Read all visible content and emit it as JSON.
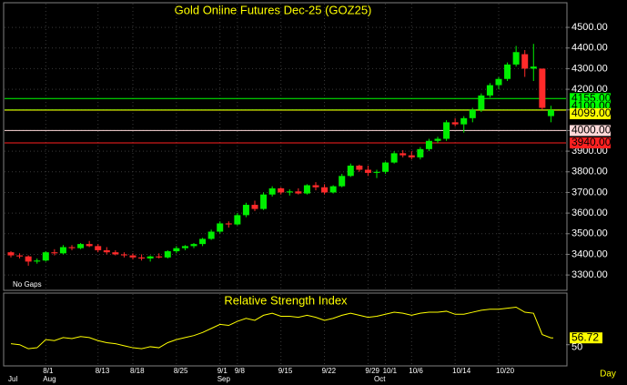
{
  "chart_data": {
    "type": "candlestick",
    "title": "Gold Online Futures Dec-25 (GOZ25)",
    "note": "No Gaps",
    "x_axis_end_label": "Day",
    "categories": [
      null,
      null,
      null,
      null,
      "8/1",
      null,
      null,
      null,
      null,
      null,
      "8/13",
      null,
      null,
      null,
      "8/18",
      null,
      null,
      null,
      null,
      "8/25",
      null,
      null,
      null,
      null,
      "9/1",
      null,
      "9/8",
      null,
      null,
      null,
      null,
      "9/15",
      null,
      null,
      null,
      null,
      "9/22",
      null,
      null,
      null,
      null,
      "9/29",
      null,
      "10/1",
      null,
      null,
      "10/6",
      null,
      null,
      null,
      null,
      "10/14",
      null,
      null,
      null,
      null,
      "10/20",
      null,
      null,
      null,
      null,
      null,
      null
    ],
    "months": [
      "Jul",
      null,
      null,
      null,
      "Aug",
      null,
      null,
      null,
      null,
      null,
      null,
      null,
      null,
      null,
      null,
      null,
      null,
      null,
      null,
      null,
      null,
      null,
      null,
      null,
      "Sep",
      null,
      null,
      null,
      null,
      null,
      null,
      null,
      null,
      null,
      null,
      null,
      null,
      null,
      null,
      null,
      null,
      null,
      "Oct",
      null,
      null,
      null,
      null,
      null,
      null,
      null,
      null,
      null,
      null,
      null,
      null,
      null,
      null,
      null,
      null,
      null,
      null,
      null,
      null,
      null,
      null
    ],
    "open": [
      3410,
      3395,
      3390,
      3365,
      3370,
      3410,
      3405,
      3435,
      3430,
      3450,
      3440,
      3420,
      3410,
      3400,
      3395,
      3385,
      3380,
      3390,
      3385,
      3415,
      3430,
      3440,
      3450,
      3475,
      3510,
      3550,
      3545,
      3590,
      3640,
      3620,
      3690,
      3720,
      3700,
      3705,
      3695,
      3735,
      3725,
      3700,
      3730,
      3780,
      3830,
      3810,
      3795,
      3800,
      3845,
      3890,
      3880,
      3870,
      3910,
      3950,
      3960,
      4040,
      4030,
      4060,
      4100,
      4170,
      4220,
      4250,
      4320,
      4370,
      4300,
      4300,
      4070
    ],
    "high": [
      3415,
      3405,
      3395,
      3380,
      3415,
      3425,
      3445,
      3445,
      3455,
      3465,
      3450,
      3435,
      3420,
      3410,
      3405,
      3400,
      3395,
      3405,
      3420,
      3440,
      3445,
      3455,
      3480,
      3520,
      3560,
      3560,
      3600,
      3650,
      3660,
      3700,
      3730,
      3725,
      3715,
      3720,
      3740,
      3750,
      3740,
      3735,
      3790,
      3840,
      3835,
      3830,
      3810,
      3850,
      3900,
      3905,
      3900,
      3920,
      3960,
      3970,
      4050,
      4060,
      4070,
      4110,
      4180,
      4230,
      4260,
      4330,
      4410,
      4390,
      4420,
      4300,
      4120
    ],
    "low": [
      3385,
      3380,
      3345,
      3355,
      3365,
      3395,
      3400,
      3420,
      3425,
      3435,
      3410,
      3400,
      3395,
      3385,
      3375,
      3370,
      3365,
      3380,
      3380,
      3405,
      3420,
      3430,
      3440,
      3470,
      3500,
      3530,
      3540,
      3580,
      3610,
      3615,
      3680,
      3690,
      3685,
      3690,
      3690,
      3710,
      3690,
      3695,
      3725,
      3775,
      3800,
      3780,
      3770,
      3790,
      3840,
      3870,
      3860,
      3860,
      3900,
      3940,
      3950,
      4020,
      3990,
      4040,
      4090,
      4160,
      4200,
      4240,
      4310,
      4260,
      4240,
      4100,
      4040
    ],
    "close": [
      3395,
      3390,
      3365,
      3370,
      3410,
      3405,
      3435,
      3430,
      3450,
      3440,
      3420,
      3410,
      3400,
      3395,
      3385,
      3380,
      3390,
      3385,
      3415,
      3430,
      3440,
      3450,
      3475,
      3510,
      3550,
      3545,
      3590,
      3640,
      3620,
      3690,
      3720,
      3700,
      3705,
      3695,
      3735,
      3725,
      3700,
      3730,
      3780,
      3830,
      3810,
      3795,
      3800,
      3845,
      3890,
      3880,
      3870,
      3910,
      3950,
      3960,
      4040,
      4030,
      4060,
      4100,
      4170,
      4220,
      4250,
      4320,
      4380,
      4300,
      4310,
      4110,
      4099
    ],
    "up_color": "#00ee00",
    "down_color": "#ff2a2a",
    "ylim": [
      3230,
      4615
    ],
    "yticks": [
      {
        "value": 3300,
        "label": "3300.00"
      },
      {
        "value": 3400,
        "label": "3400.00"
      },
      {
        "value": 3500,
        "label": "3500.00"
      },
      {
        "value": 3600,
        "label": "3600.00"
      },
      {
        "value": 3700,
        "label": "3700.00"
      },
      {
        "value": 3800,
        "label": "3800.00"
      },
      {
        "value": 3900,
        "label": "3900.00"
      },
      {
        "value": 4000,
        "label": "4000.00"
      },
      {
        "value": 4100,
        "label": "4100.00"
      },
      {
        "value": 4200,
        "label": "4200.00"
      },
      {
        "value": 4300,
        "label": "4300.00"
      },
      {
        "value": 4400,
        "label": "4400.00"
      },
      {
        "value": 4500,
        "label": "4500.00"
      }
    ],
    "grid": true,
    "levels": [
      {
        "value": 4155,
        "label": "4155.00",
        "color": "#00ff00"
      },
      {
        "value": 4100,
        "label": "4100.00",
        "color": "#00ff00"
      },
      {
        "value": 4099,
        "label": "4099.00",
        "color": "#ffff00"
      },
      {
        "value": 4000,
        "label": "4000.00",
        "color": "#ffd8d8"
      },
      {
        "value": 3940,
        "label": "3940.00",
        "color": "#ff2020"
      }
    ],
    "indicator": {
      "title": "Relative Strength Index",
      "color": "#ffff00",
      "values": [
        51,
        50,
        46,
        47,
        55,
        54,
        57,
        56,
        58,
        57,
        54,
        52,
        51,
        49,
        47,
        46,
        48,
        47,
        52,
        55,
        57,
        59,
        62,
        66,
        70,
        69,
        73,
        76,
        74,
        79,
        81,
        78,
        78,
        77,
        79,
        77,
        74,
        76,
        79,
        81,
        79,
        77,
        78,
        80,
        82,
        81,
        79,
        81,
        82,
        82,
        83,
        80,
        80,
        82,
        84,
        85,
        85,
        86,
        87,
        82,
        81,
        60,
        56.72
      ],
      "ylim": [
        30,
        100
      ],
      "yticks": [
        50
      ]
    }
  }
}
